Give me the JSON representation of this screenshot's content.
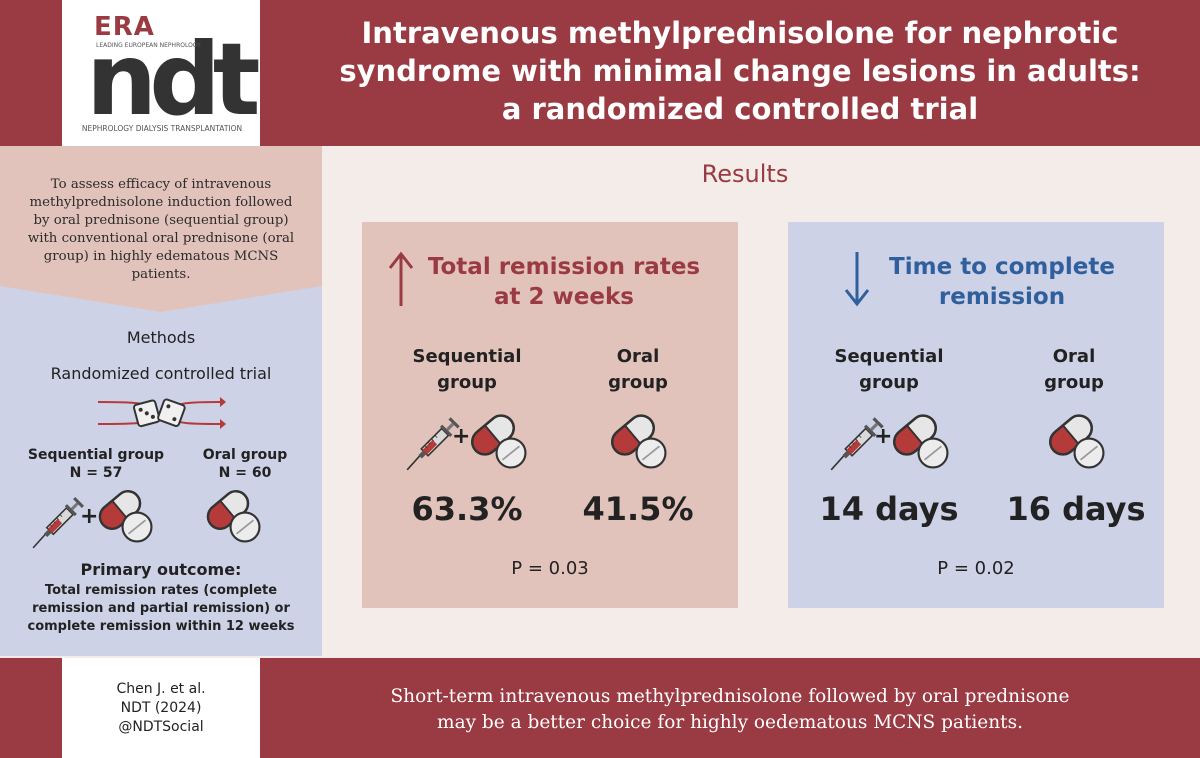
{
  "header": {
    "logo": {
      "era": "ERA",
      "era_sub": "LEADING EUROPEAN NEPHROLOGY",
      "ndt": "ndt",
      "subtitle": "NEPHROLOGY DIALYSIS TRANSPLANTATION"
    },
    "title_line1": "Intravenous methylprednisolone for nephrotic",
    "title_line2": "syndrome with minimal change lesions in adults:",
    "title_line3": "a randomized controlled trial"
  },
  "aim": {
    "line1": "To assess efficacy of intravenous",
    "line2": "methylprednisolone induction followed",
    "line3": "by oral prednisone (sequential group)",
    "line4": "with conventional oral prednisone (oral",
    "line5": "group) in highly edematous MCNS",
    "line6": "patients."
  },
  "methods": {
    "title": "Methods",
    "design": "Randomized controlled trial",
    "groups": [
      {
        "name": "Sequential group",
        "n": "N = 57"
      },
      {
        "name": "Oral group",
        "n": "N = 60"
      }
    ],
    "primary_title": "Primary outcome:",
    "primary_line1": "Total remission rates (complete",
    "primary_line2": "remission and partial remission) or",
    "primary_line3": "complete remission within 12 weeks"
  },
  "results": {
    "title": "Results",
    "cards": [
      {
        "heading_line1": "Total remission rates",
        "heading_line2": "at 2 weeks",
        "col1_line1": "Sequential",
        "col1_line2": "group",
        "col2_line1": "Oral",
        "col2_line2": "group",
        "val1": "63.3%",
        "val2": "41.5%",
        "p": "P = 0.03"
      },
      {
        "heading_line1": "Time to complete",
        "heading_line2": "remission",
        "col1_line1": "Sequential",
        "col1_line2": "group",
        "col2_line1": "Oral",
        "col2_line2": "group",
        "val1": "14 days",
        "val2": "16 days",
        "p": "P = 0.02"
      }
    ]
  },
  "footer": {
    "cite_line1": "Chen J. et al.",
    "cite_line2": "NDT (2024)",
    "cite_line3": "@NDTSocial",
    "conclusion_line1": "Short-term intravenous methylprednisolone followed by oral prednisone",
    "conclusion_line2": "may be a better choice for highly oedematous MCNS patients."
  },
  "colors": {
    "brand": "#9a3a42",
    "pink_panel": "#e2c3bb",
    "blue_panel": "#cdd2e6",
    "blue_accent": "#2f5f9c"
  },
  "icons": [
    "syringe-icon",
    "capsule-icon",
    "tablet-icon",
    "dice-icon",
    "up-arrow-icon",
    "down-arrow-icon"
  ]
}
